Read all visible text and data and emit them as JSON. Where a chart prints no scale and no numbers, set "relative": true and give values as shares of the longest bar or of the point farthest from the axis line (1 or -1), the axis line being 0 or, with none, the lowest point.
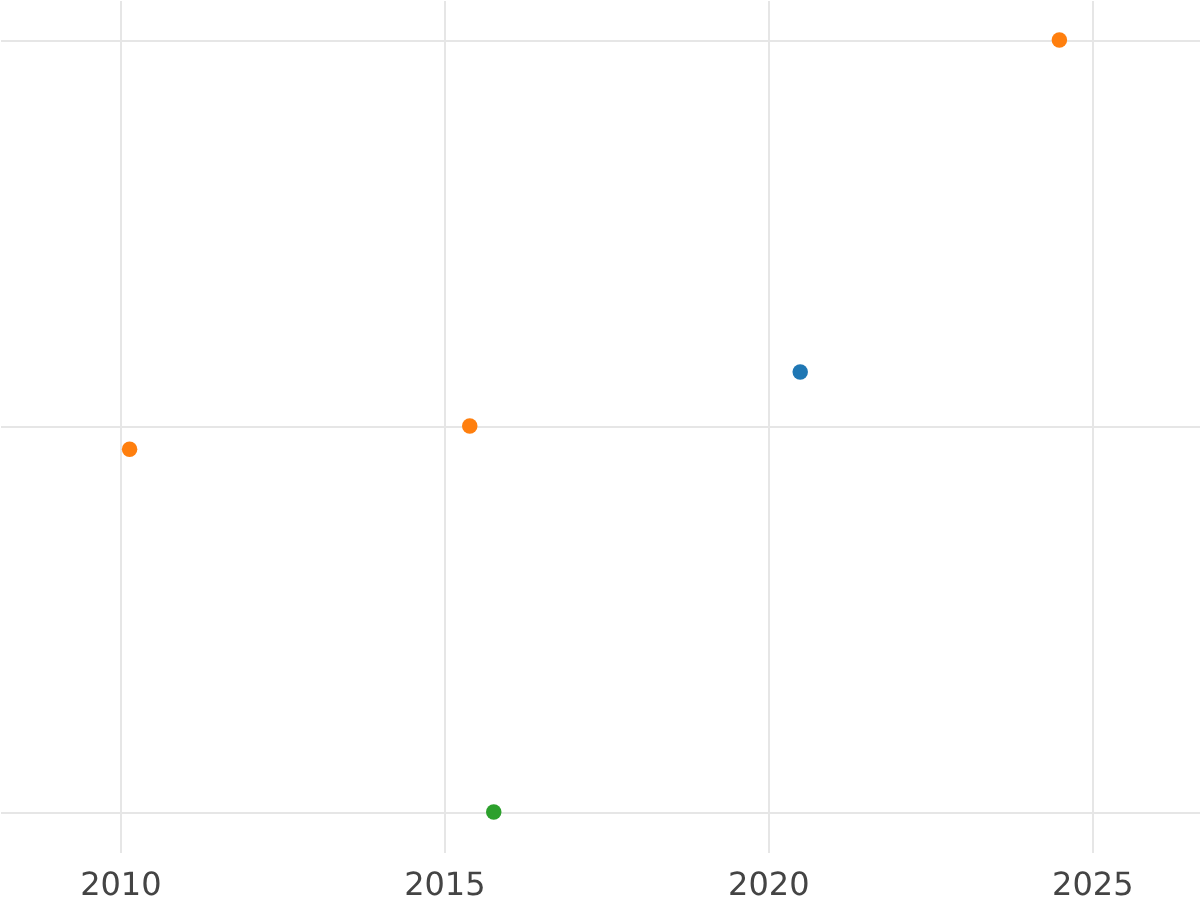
{
  "chart_data": {
    "type": "scatter",
    "relative": true,
    "marker": "circle",
    "grid": true,
    "legend": false,
    "xlim": [
      2008.15,
      2026.67
    ],
    "xticks": [
      2010,
      2015,
      2020,
      2025
    ],
    "series": [
      {
        "color": "#ff7f0e",
        "x": [
          2010.15,
          2015.4,
          2024.5
        ],
        "values": [
          0.47,
          0.5,
          1
        ]
      },
      {
        "color": "#1f77b4",
        "x": [
          2020.5
        ],
        "values": [
          0.57
        ]
      },
      {
        "color": "#2ca02c",
        "x": [
          2015.77
        ],
        "values": [
          0
        ]
      }
    ]
  }
}
